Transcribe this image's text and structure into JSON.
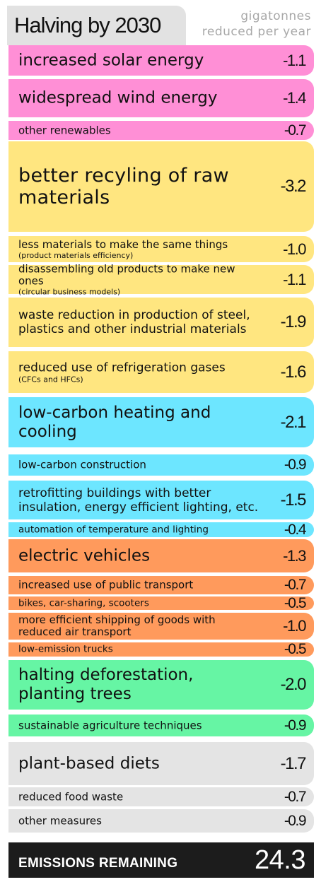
{
  "header": {
    "title": "Halving by 2030",
    "unit_line1": "gigatonnes",
    "unit_line2": "reduced per year"
  },
  "colors": {
    "energy": "#ff8fd6",
    "materials": "#ffe680",
    "buildings": "#6de6ff",
    "transport": "#ff9a5c",
    "land": "#66f5a4",
    "food": "#e4e4e4",
    "total_bg": "#1c1c1c"
  },
  "chart_data": {
    "type": "bar",
    "title": "Halving by 2030",
    "ylabel": "gigatonnes reduced per year",
    "bars": [
      {
        "label": "increased solar energy",
        "sub": "",
        "value_text": "-1.1",
        "value": -1.1,
        "group": "energy"
      },
      {
        "label": "widespread wind energy",
        "sub": "",
        "value_text": "-1.4",
        "value": -1.4,
        "group": "energy"
      },
      {
        "label": "other renewables",
        "sub": "",
        "value_text": "-0.7",
        "value": -0.7,
        "group": "energy"
      },
      {
        "label": "better recyling of raw materials",
        "sub": "",
        "value_text": "-3.2",
        "value": -3.2,
        "group": "materials"
      },
      {
        "label": "less materials to make the same things",
        "sub": "(product materials efficiency)",
        "value_text": "-1.0",
        "value": -1.0,
        "group": "materials"
      },
      {
        "label": "disassembling old products to make new ones",
        "sub": "(circular business models)",
        "value_text": "-1.1",
        "value": -1.1,
        "group": "materials"
      },
      {
        "label": "waste reduction in production of steel, plastics and other industrial materials",
        "sub": "",
        "value_text": "-1.9",
        "value": -1.9,
        "group": "materials"
      },
      {
        "label": "reduced use of refrigeration gases",
        "sub": "(CFCs and HFCs)",
        "value_text": "-1.6",
        "value": -1.6,
        "group": "materials"
      },
      {
        "label": "low-carbon heating and cooling",
        "sub": "",
        "value_text": "-2.1",
        "value": -2.1,
        "group": "buildings"
      },
      {
        "label": "low-carbon construction",
        "sub": "",
        "value_text": "-0.9",
        "value": -0.9,
        "group": "buildings"
      },
      {
        "label": "retrofitting buildings with better insulation, energy efficient lighting, etc.",
        "sub": "",
        "value_text": "-1.5",
        "value": -1.5,
        "group": "buildings"
      },
      {
        "label": "automation of temperature and lighting",
        "sub": "",
        "value_text": "-0.4",
        "value": -0.4,
        "group": "buildings"
      },
      {
        "label": "electric vehicles",
        "sub": "",
        "value_text": "-1.3",
        "value": -1.3,
        "group": "transport"
      },
      {
        "label": "increased use of public transport",
        "sub": "",
        "value_text": "-0.7",
        "value": -0.7,
        "group": "transport"
      },
      {
        "label": "bikes, car-sharing, scooters",
        "sub": "",
        "value_text": "-0.5",
        "value": -0.5,
        "group": "transport"
      },
      {
        "label": "more efficient shipping of goods with reduced air transport",
        "sub": "",
        "value_text": "-1.0",
        "value": -1.0,
        "group": "transport"
      },
      {
        "label": "low-emission trucks",
        "sub": "",
        "value_text": "-0.5",
        "value": -0.5,
        "group": "transport"
      },
      {
        "label": "halting deforestation, planting trees",
        "sub": "",
        "value_text": "-2.0",
        "value": -2.0,
        "group": "land"
      },
      {
        "label": "sustainable agriculture techniques",
        "sub": "",
        "value_text": "-0.9",
        "value": -0.9,
        "group": "land"
      },
      {
        "label": "plant-based diets",
        "sub": "",
        "value_text": "-1.7",
        "value": -1.7,
        "group": "food"
      },
      {
        "label": "reduced food waste",
        "sub": "",
        "value_text": "-0.7",
        "value": -0.7,
        "group": "food"
      },
      {
        "label": "other measures",
        "sub": "",
        "value_text": "-0.9",
        "value": -0.9,
        "group": "food"
      }
    ],
    "total": {
      "label": "EMISSIONS REMAINING",
      "value_text": "24.3",
      "value": 24.3
    }
  }
}
